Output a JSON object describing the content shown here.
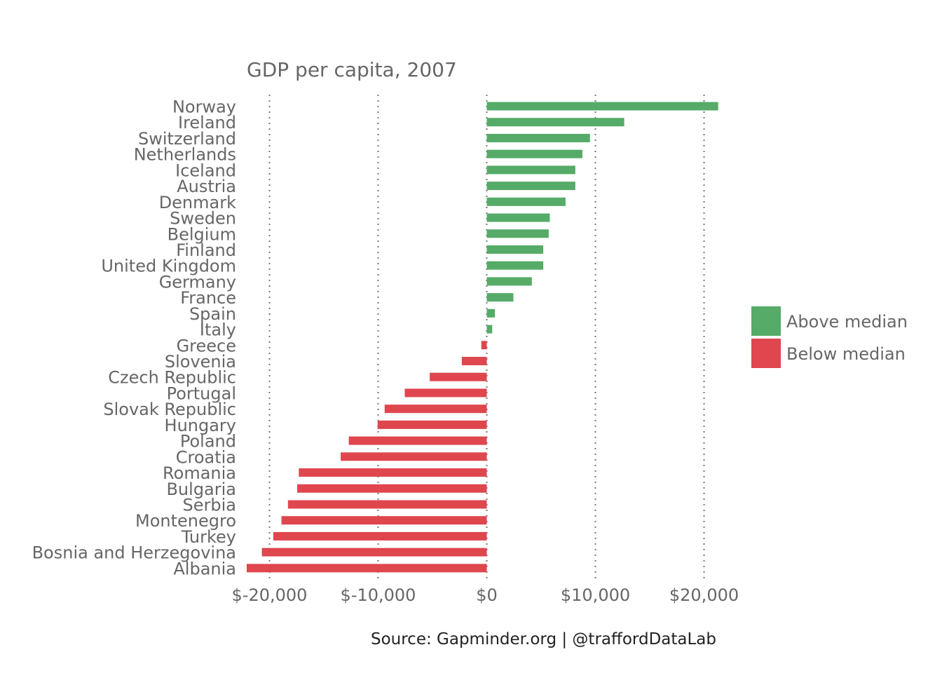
{
  "chart_data": {
    "type": "bar",
    "orientation": "horizontal",
    "title": "GDP per capita, 2007",
    "caption": "Source: Gapminder.org  |  @traffordDataLab",
    "xlim": [
      -22500,
      23500
    ],
    "x_ticks": [
      -20000,
      -10000,
      0,
      10000,
      20000
    ],
    "x_tick_labels": [
      "$-20,000",
      "$-10,000",
      "$0",
      "$10,000",
      "$20,000"
    ],
    "grid": "vertical-dotted",
    "legend_position": "right",
    "legend": [
      {
        "key": "above",
        "label": "Above median",
        "color": "#55ab67"
      },
      {
        "key": "below",
        "label": "Below median",
        "color": "#df464e"
      }
    ],
    "categories": [
      "Norway",
      "Ireland",
      "Switzerland",
      "Netherlands",
      "Iceland",
      "Austria",
      "Denmark",
      "Sweden",
      "Belgium",
      "Finland",
      "United Kingdom",
      "Germany",
      "France",
      "Spain",
      "Italy",
      "Greece",
      "Slovenia",
      "Czech Republic",
      "Portugal",
      "Slovak Republic",
      "Hungary",
      "Poland",
      "Croatia",
      "Romania",
      "Bulgaria",
      "Serbia",
      "Montenegro",
      "Turkey",
      "Bosnia and Herzegovina",
      "Albania"
    ],
    "values": [
      21300,
      12650,
      9500,
      8800,
      8150,
      8150,
      7250,
      5800,
      5700,
      5200,
      5200,
      4150,
      2450,
      750,
      500,
      -500,
      -2300,
      -5250,
      -7550,
      -9400,
      -10050,
      -12700,
      -13450,
      -17300,
      -17450,
      -18300,
      -18900,
      -19650,
      -20700,
      -22100
    ],
    "groups": [
      "above",
      "above",
      "above",
      "above",
      "above",
      "above",
      "above",
      "above",
      "above",
      "above",
      "above",
      "above",
      "above",
      "above",
      "above",
      "below",
      "below",
      "below",
      "below",
      "below",
      "below",
      "below",
      "below",
      "below",
      "below",
      "below",
      "below",
      "below",
      "below",
      "below"
    ]
  }
}
